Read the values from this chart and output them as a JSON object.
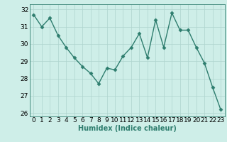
{
  "x": [
    0,
    1,
    2,
    3,
    4,
    5,
    6,
    7,
    8,
    9,
    10,
    11,
    12,
    13,
    14,
    15,
    16,
    17,
    18,
    19,
    20,
    21,
    22,
    23
  ],
  "y": [
    31.7,
    31.0,
    31.5,
    30.5,
    29.8,
    29.2,
    28.7,
    28.3,
    27.7,
    28.6,
    28.5,
    29.3,
    29.8,
    30.6,
    29.2,
    31.4,
    29.8,
    31.8,
    30.8,
    30.8,
    29.8,
    28.9,
    27.5,
    26.2
  ],
  "line_color": "#2e7d6e",
  "marker": "D",
  "markersize": 2.5,
  "linewidth": 1.0,
  "xlabel": "Humidex (Indice chaleur)",
  "xlim": [
    -0.5,
    23.5
  ],
  "ylim": [
    25.8,
    32.3
  ],
  "yticks": [
    26,
    27,
    28,
    29,
    30,
    31,
    32
  ],
  "xticks": [
    0,
    1,
    2,
    3,
    4,
    5,
    6,
    7,
    8,
    9,
    10,
    11,
    12,
    13,
    14,
    15,
    16,
    17,
    18,
    19,
    20,
    21,
    22,
    23
  ],
  "bg_color": "#ceeee8",
  "grid_color": "#aed4ce",
  "label_fontsize": 7,
  "tick_fontsize": 6.5
}
